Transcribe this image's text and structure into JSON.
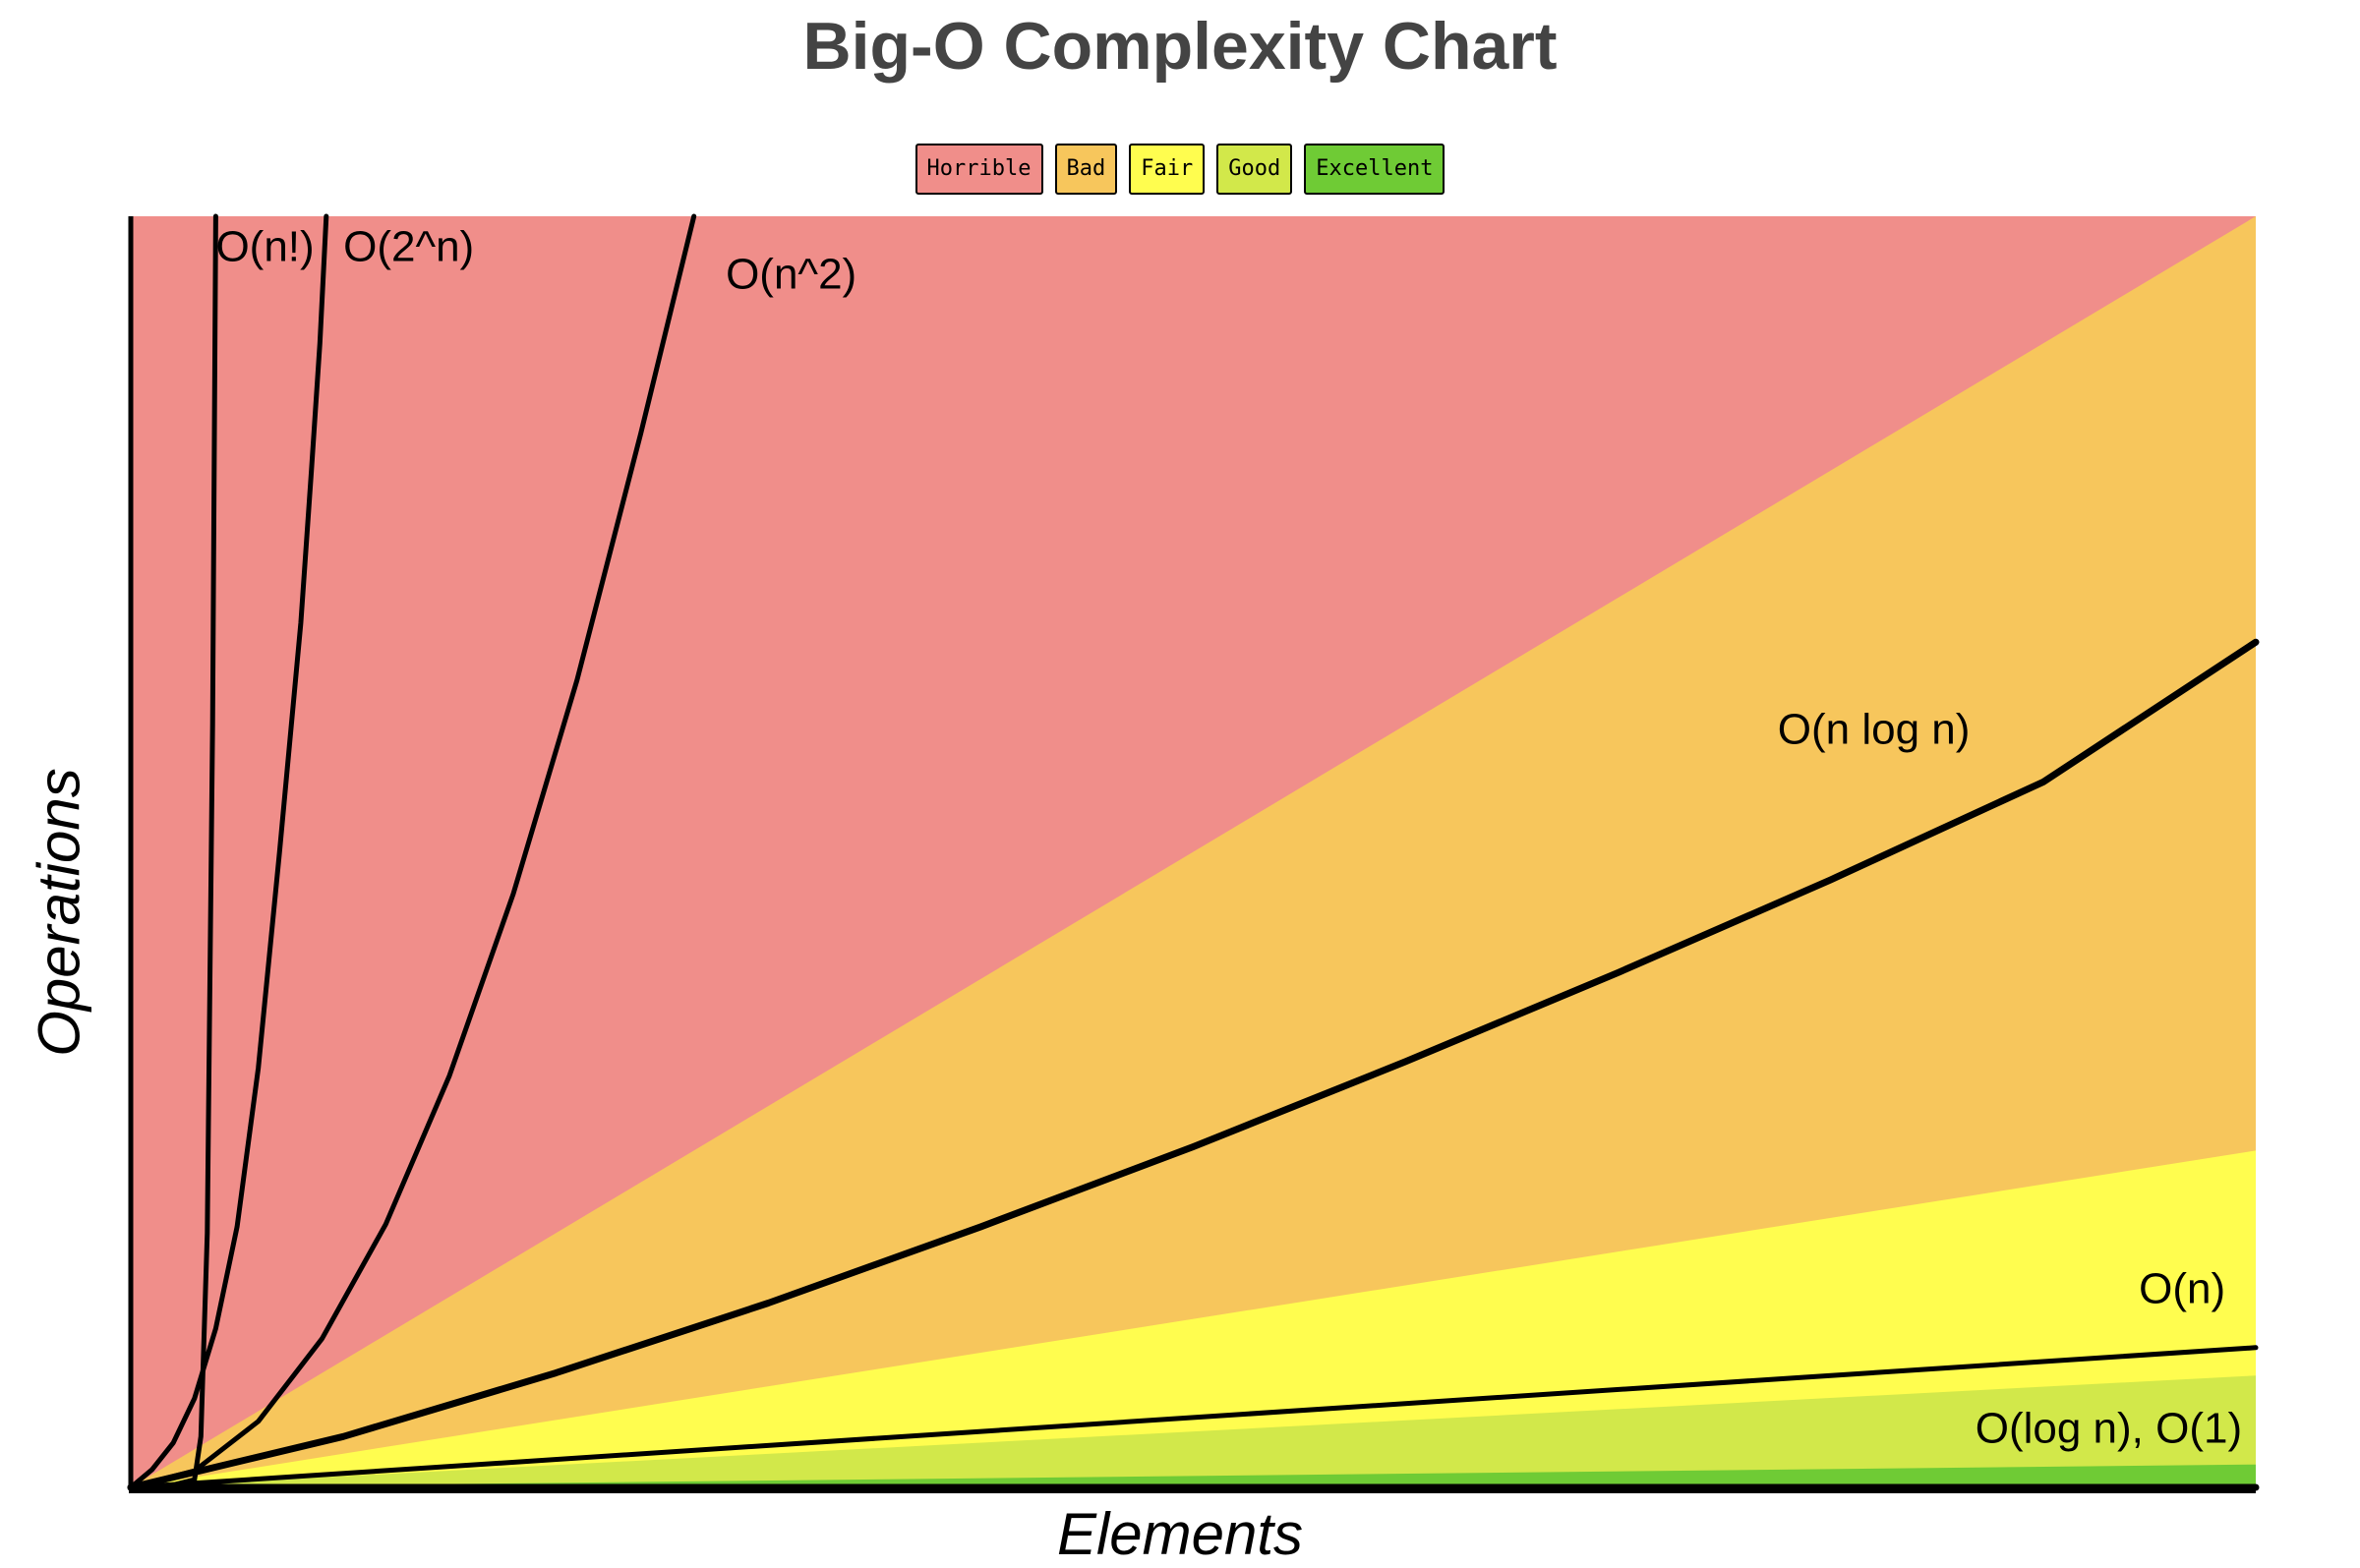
{
  "chart_data": {
    "type": "line",
    "title": "Big-O Complexity Chart",
    "xlabel": "Elements",
    "ylabel": "Operations",
    "legend": {
      "placement": "top-center",
      "entries": [
        {
          "label": "Horrible",
          "color": "#f08e8a"
        },
        {
          "label": "Bad",
          "color": "#f7c65c"
        },
        {
          "label": "Fair",
          "color": "#fffd4f"
        },
        {
          "label": "Good",
          "color": "#d2e84a"
        },
        {
          "label": "Excellent",
          "color": "#6fcb35"
        }
      ]
    },
    "border_color": "#000000",
    "grid": false,
    "xlim": [
      0,
      100
    ],
    "ylim": [
      0,
      1000
    ],
    "regions": [
      {
        "label": "Horrible",
        "color": "#f08e8a",
        "upper_boundary": [
          [
            0,
            1000
          ],
          [
            100,
            1000
          ]
        ]
      },
      {
        "label": "Bad",
        "color": "#f7c65c",
        "upper_boundary": [
          [
            0,
            0
          ],
          [
            100,
            1000
          ]
        ]
      },
      {
        "label": "Fair",
        "color": "#fffd4f",
        "upper_boundary": [
          [
            0,
            0
          ],
          [
            100,
            265
          ]
        ]
      },
      {
        "label": "Good",
        "color": "#d2e84a",
        "upper_boundary": [
          [
            0,
            0
          ],
          [
            100,
            88
          ]
        ]
      },
      {
        "label": "Excellent",
        "color": "#6fcb35",
        "upper_boundary": [
          [
            0,
            0
          ],
          [
            100,
            18
          ]
        ]
      }
    ],
    "series": [
      {
        "name": "O(n!)",
        "color": "#000000",
        "x": [
          0,
          1,
          2,
          3,
          3.3,
          3.6,
          3.85,
          4.0
        ],
        "y": [
          0,
          1,
          2,
          6,
          40,
          200,
          600,
          1000
        ]
      },
      {
        "name": "O(2^n)",
        "color": "#000000",
        "x": [
          0,
          1,
          2,
          3,
          4,
          5,
          6,
          7,
          8,
          8.5,
          8.9,
          9.2
        ],
        "y": [
          0,
          14,
          35,
          70,
          125,
          205,
          330,
          500,
          680,
          800,
          900,
          1000
        ]
      },
      {
        "name": "O(n^2)",
        "color": "#000000",
        "x": [
          0,
          3,
          6,
          9,
          12,
          15,
          18,
          21,
          24,
          26.5
        ],
        "y": [
          0,
          13,
          52,
          117,
          207,
          324,
          467,
          635,
          829,
          1000
        ]
      },
      {
        "name": "O(n log n)",
        "color": "#000000",
        "x": [
          0,
          10,
          20,
          30,
          40,
          50,
          60,
          70,
          80,
          90,
          100
        ],
        "y": [
          0,
          40,
          90,
          145,
          205,
          268,
          335,
          405,
          478,
          555,
          665
        ]
      },
      {
        "name": "O(n)",
        "color": "#000000",
        "x": [
          0,
          100
        ],
        "y": [
          0,
          110
        ]
      },
      {
        "name": "O(log n), O(1)",
        "color": "#000000",
        "x": [
          0,
          100
        ],
        "y": [
          0,
          0
        ]
      }
    ],
    "curve_labels": [
      {
        "text": "O(n!)",
        "x": 4.0,
        "y": 965
      },
      {
        "text": "O(2^n)",
        "x": 10.0,
        "y": 965
      },
      {
        "text": "O(n^2)",
        "x": 28.0,
        "y": 943
      },
      {
        "text": "O(n log n)",
        "x": 77.5,
        "y": 585
      },
      {
        "text": "O(n)",
        "x": 94.5,
        "y": 145
      },
      {
        "text": "O(log n), O(1)",
        "x": 86.8,
        "y": 35
      }
    ]
  }
}
